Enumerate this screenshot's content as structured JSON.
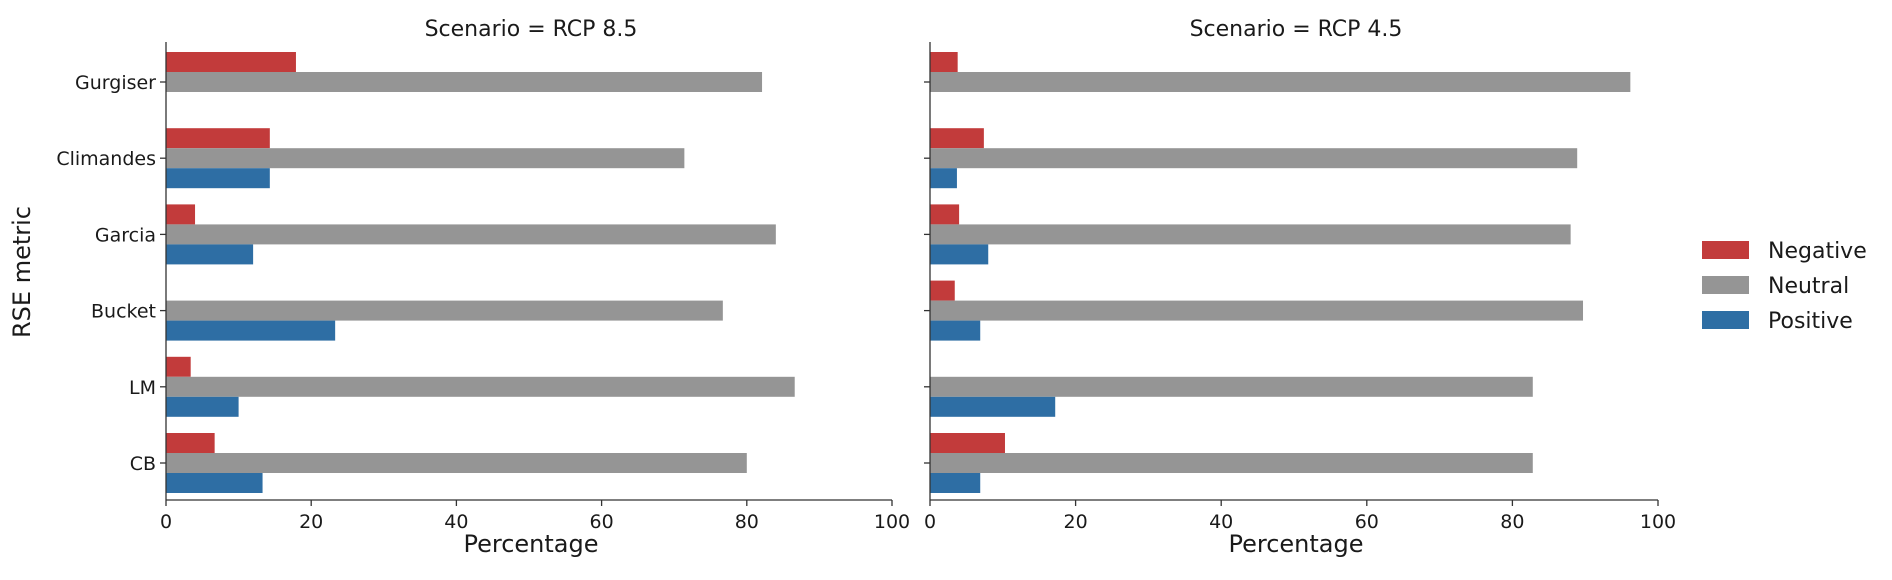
{
  "chart_data": {
    "type": "bar",
    "orientation": "horizontal",
    "ylabel": "RSE metric",
    "categories": [
      "Gurgiser",
      "Climandes",
      "Garcia",
      "Bucket",
      "LM",
      "CB"
    ],
    "legend": {
      "placement": "right",
      "entries": [
        "Negative",
        "Neutral",
        "Positive"
      ]
    },
    "colors": {
      "Negative": "#c23b3b",
      "Neutral": "#959595",
      "Positive": "#2e6ea4"
    },
    "panels": [
      {
        "title": "Scenario = RCP 8.5",
        "xlabel": "Percentage",
        "xlim": [
          0,
          100
        ],
        "xticks": [
          "0",
          "20",
          "40",
          "60",
          "80",
          "100"
        ],
        "series": [
          {
            "name": "Negative",
            "values": [
              17.9,
              14.3,
              4.0,
              0,
              3.4,
              6.7
            ]
          },
          {
            "name": "Neutral",
            "values": [
              82.1,
              71.4,
              84.0,
              76.7,
              86.6,
              80.0
            ]
          },
          {
            "name": "Positive",
            "values": [
              0,
              14.3,
              12.0,
              23.3,
              10.0,
              13.3
            ]
          }
        ]
      },
      {
        "title": "Scenario = RCP 4.5",
        "xlabel": "Percentage",
        "xlim": [
          0,
          100
        ],
        "xticks": [
          "0",
          "20",
          "40",
          "60",
          "80",
          "100"
        ],
        "series": [
          {
            "name": "Negative",
            "values": [
              3.8,
              7.4,
              4.0,
              3.4,
              0,
              10.3
            ]
          },
          {
            "name": "Neutral",
            "values": [
              96.2,
              88.9,
              88.0,
              89.7,
              82.8,
              82.8
            ]
          },
          {
            "name": "Positive",
            "values": [
              0,
              3.7,
              8.0,
              6.9,
              17.2,
              6.9
            ]
          }
        ]
      }
    ]
  }
}
